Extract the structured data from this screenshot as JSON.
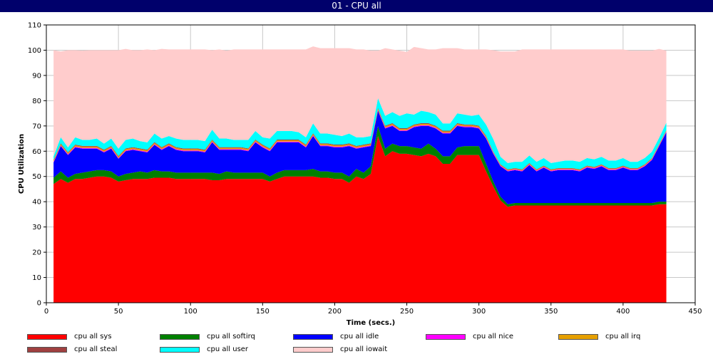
{
  "window": {
    "title": "01 - CPU all"
  },
  "chart_data": {
    "type": "area",
    "stacked": true,
    "title": "",
    "xlabel": "Time (secs.)",
    "ylabel": "CPU Utilization",
    "xlim": [
      0,
      450
    ],
    "ylim": [
      0,
      110
    ],
    "xticks": [
      0,
      50,
      100,
      150,
      200,
      250,
      300,
      350,
      400,
      450
    ],
    "yticks": [
      0,
      10,
      20,
      30,
      40,
      50,
      60,
      70,
      80,
      90,
      100,
      110
    ],
    "grid": true,
    "legend_position": "bottom",
    "x": [
      5,
      10,
      15,
      20,
      25,
      30,
      35,
      40,
      45,
      50,
      55,
      60,
      65,
      70,
      75,
      80,
      85,
      90,
      95,
      100,
      105,
      110,
      115,
      120,
      125,
      130,
      135,
      140,
      145,
      150,
      155,
      160,
      165,
      170,
      175,
      180,
      185,
      190,
      195,
      200,
      205,
      210,
      215,
      220,
      225,
      230,
      235,
      240,
      245,
      250,
      255,
      260,
      265,
      270,
      275,
      280,
      285,
      290,
      295,
      300,
      305,
      310,
      315,
      320,
      325,
      330,
      335,
      340,
      345,
      350,
      355,
      360,
      365,
      370,
      375,
      380,
      385,
      390,
      395,
      400,
      405,
      410,
      415,
      420,
      425,
      430
    ],
    "series": [
      {
        "name": "cpu all sys",
        "color": "#ff0000",
        "values": [
          47,
          49,
          47.5,
          49,
          49,
          49.5,
          50,
          50,
          49.5,
          48,
          48.5,
          49,
          49,
          49,
          49.5,
          49.5,
          49.5,
          49,
          49,
          49,
          49,
          49,
          48.5,
          48.5,
          49,
          49,
          49,
          49,
          49,
          49,
          48,
          49,
          50,
          50,
          50,
          50,
          50,
          49.5,
          49.5,
          49,
          49,
          47.5,
          50,
          49,
          51,
          66,
          58,
          60,
          59,
          59,
          58.5,
          58,
          59,
          58,
          55,
          55,
          58.5,
          58.5,
          58.5,
          58.5,
          52,
          46,
          40.5,
          38,
          38.5,
          38.5,
          38.5,
          38.5,
          38.5,
          38.5,
          38.5,
          38.5,
          38.5,
          38.5,
          38.5,
          38.5,
          38.5,
          38.5,
          38.5,
          38.5,
          38.5,
          38.5,
          38.5,
          38.5,
          39,
          39
        ]
      },
      {
        "name": "cpu all softirq",
        "color": "#008000",
        "values": [
          2.5,
          3,
          2,
          2,
          2.5,
          2.5,
          2.5,
          2.5,
          2.5,
          2,
          2.5,
          2.5,
          3,
          2.5,
          3,
          2.5,
          2.5,
          2.5,
          2.5,
          2.5,
          2.5,
          2.5,
          3,
          2.5,
          3,
          2.5,
          2.5,
          2.5,
          2.5,
          2.5,
          2,
          2.5,
          2.5,
          2.5,
          2.5,
          2.5,
          3,
          2.5,
          2.5,
          2.5,
          2.5,
          2.5,
          3,
          2.5,
          3,
          4,
          3,
          3,
          3,
          3,
          3,
          3,
          4,
          3,
          3,
          3,
          3,
          3.5,
          3.5,
          3.5,
          3,
          2,
          1.5,
          1,
          1,
          1,
          1,
          1,
          1,
          1,
          1,
          1,
          1,
          1,
          1,
          1,
          1,
          1,
          1,
          1,
          1,
          1,
          1,
          1,
          1,
          1
        ]
      },
      {
        "name": "cpu all idle",
        "color": "#0000ff",
        "values": [
          6,
          10,
          9,
          10.5,
          9.5,
          9,
          8.5,
          7,
          9,
          7,
          9,
          9,
          8,
          8,
          10,
          8.5,
          10,
          9,
          8.5,
          8.5,
          8.5,
          8,
          12,
          9.5,
          8.5,
          9,
          9,
          8.5,
          12,
          10,
          10,
          12,
          11,
          11,
          11,
          9,
          13,
          10,
          10,
          10,
          10,
          12,
          8,
          10,
          8,
          6,
          8,
          7,
          6,
          6,
          8,
          9,
          7,
          8,
          9,
          9,
          8.5,
          7.5,
          7.5,
          7,
          10,
          11,
          12,
          13,
          13,
          12.5,
          15,
          12.5,
          14,
          12.5,
          13,
          13,
          13,
          12.5,
          14,
          13.5,
          14.5,
          13,
          13,
          14,
          13,
          13,
          14.5,
          17,
          22,
          27.5
        ]
      },
      {
        "name": "cpu all nice",
        "color": "#ff00ff",
        "values": [
          0.3,
          0.3,
          0.3,
          0.3,
          0.3,
          0.3,
          0.3,
          0.3,
          0.3,
          0.3,
          0.3,
          0.3,
          0.3,
          0.3,
          0.3,
          0.3,
          0.3,
          0.3,
          0.3,
          0.3,
          0.3,
          0.3,
          0.3,
          0.3,
          0.3,
          0.3,
          0.3,
          0.3,
          0.3,
          0.3,
          0.3,
          0.3,
          0.3,
          0.3,
          0.3,
          0.3,
          0.3,
          0.3,
          0.3,
          0.3,
          0.3,
          0.3,
          0.3,
          0.3,
          0.3,
          0.3,
          0.3,
          0.3,
          0.3,
          0.3,
          0.3,
          0.3,
          0.3,
          0.3,
          0.3,
          0.3,
          0.3,
          0.3,
          0.3,
          0.3,
          0.3,
          0.3,
          0.3,
          0.3,
          0.3,
          0.3,
          0.3,
          0.3,
          0.3,
          0.3,
          0.3,
          0.3,
          0.3,
          0.3,
          0.3,
          0.3,
          0.3,
          0.3,
          0.3,
          0.3,
          0.3,
          0.3,
          0.3,
          0.3,
          0.3,
          0.3
        ]
      },
      {
        "name": "cpu all irq",
        "color": "#e6a000",
        "values": [
          0.5,
          0.5,
          0.5,
          0.5,
          0.5,
          0.5,
          0.5,
          0.5,
          0.5,
          0.5,
          0.5,
          0.5,
          0.5,
          0.5,
          0.5,
          0.5,
          0.5,
          0.5,
          0.5,
          0.5,
          0.5,
          0.5,
          0.5,
          0.5,
          0.5,
          0.5,
          0.5,
          0.5,
          0.5,
          0.5,
          0.5,
          0.5,
          0.5,
          0.5,
          0.5,
          0.5,
          0.5,
          0.5,
          0.5,
          0.5,
          0.5,
          0.5,
          0.5,
          0.5,
          0.5,
          0.5,
          0.5,
          0.5,
          0.5,
          0.5,
          0.5,
          0.5,
          0.5,
          0.5,
          0.5,
          0.5,
          0.5,
          0.5,
          0.5,
          0.5,
          0.5,
          0.3,
          0.3,
          0.3,
          0.3,
          0.3,
          0.3,
          0.3,
          0.3,
          0.3,
          0.3,
          0.3,
          0.3,
          0.3,
          0.3,
          0.3,
          0.3,
          0.3,
          0.3,
          0.3,
          0.3,
          0.3,
          0.3,
          0.3,
          0.3,
          0.3
        ]
      },
      {
        "name": "cpu all steal",
        "color": "#a04040",
        "values": [
          0.3,
          0.3,
          0.3,
          0.3,
          0.3,
          0.3,
          0.3,
          0.3,
          0.3,
          0.3,
          0.3,
          0.3,
          0.3,
          0.3,
          0.3,
          0.3,
          0.3,
          0.3,
          0.3,
          0.3,
          0.3,
          0.3,
          0.3,
          0.3,
          0.3,
          0.3,
          0.3,
          0.3,
          0.3,
          0.3,
          0.3,
          0.3,
          0.3,
          0.3,
          0.3,
          0.3,
          0.3,
          0.3,
          0.3,
          0.3,
          0.3,
          0.3,
          0.3,
          0.3,
          0.3,
          0.3,
          0.3,
          0.3,
          0.3,
          0.3,
          0.3,
          0.3,
          0.3,
          0.3,
          0.3,
          0.3,
          0.3,
          0.3,
          0.3,
          0.3,
          0.3,
          0.2,
          0.2,
          0.2,
          0.2,
          0.2,
          0.2,
          0.2,
          0.2,
          0.2,
          0.2,
          0.2,
          0.2,
          0.2,
          0.2,
          0.2,
          0.2,
          0.2,
          0.2,
          0.2,
          0.2,
          0.2,
          0.2,
          0.2,
          0.2,
          0.2
        ]
      },
      {
        "name": "cpu all user",
        "color": "#00ffff",
        "values": [
          1.4,
          2.4,
          1.9,
          2.9,
          2.4,
          2.4,
          2.9,
          2.4,
          2.9,
          2.9,
          3.4,
          3.4,
          2.9,
          2.9,
          3.4,
          3.4,
          2.9,
          3.4,
          3.4,
          3.4,
          3.4,
          3.4,
          3.9,
          3.4,
          3.4,
          2.9,
          2.9,
          3.4,
          3.4,
          2.9,
          3.9,
          3.4,
          3.4,
          3.4,
          2.9,
          2.9,
          3.9,
          3.9,
          3.9,
          3.9,
          3.4,
          3.9,
          3.4,
          2.9,
          2.9,
          3.9,
          3.9,
          4.4,
          4.9,
          5.9,
          3.9,
          4.9,
          4.4,
          4.4,
          2.9,
          2.9,
          3.9,
          3.9,
          3.4,
          4.4,
          4.4,
          5,
          3,
          2.5,
          2.5,
          3,
          3,
          3,
          3,
          2.5,
          2.5,
          3,
          3,
          3,
          3,
          3,
          3,
          3,
          3,
          3,
          2.5,
          2.5,
          2.5,
          2.5,
          2.5,
          3
        ]
      },
      {
        "name": "cpu all iowait",
        "color": "#ffcccc",
        "values": [
          42,
          34,
          38.5,
          34.5,
          35.3,
          35.5,
          35,
          37,
          35,
          39,
          36,
          35,
          36,
          36.8,
          33,
          35.5,
          34.3,
          35.3,
          35.8,
          35.8,
          35.8,
          36.3,
          31.5,
          35.3,
          34.8,
          35.8,
          35.8,
          35.8,
          32.3,
          34.8,
          35.3,
          32.3,
          32.3,
          32.3,
          32.8,
          34.8,
          30.5,
          33.8,
          33.8,
          34.3,
          34.8,
          33.8,
          34.8,
          34.8,
          33.8,
          18.8,
          26.8,
          24.8,
          25.8,
          24.3,
          26.8,
          24.8,
          24.8,
          25.8,
          29.8,
          29.8,
          25.8,
          25.8,
          26.3,
          25.8,
          29.8,
          35.2,
          41.7,
          44.2,
          43.7,
          44.5,
          42,
          44.5,
          43,
          45,
          44.5,
          44,
          44,
          44.5,
          43,
          43.5,
          42.5,
          44,
          44,
          43,
          44,
          44,
          42.5,
          40,
          35.2,
          28.5
        ]
      }
    ]
  }
}
